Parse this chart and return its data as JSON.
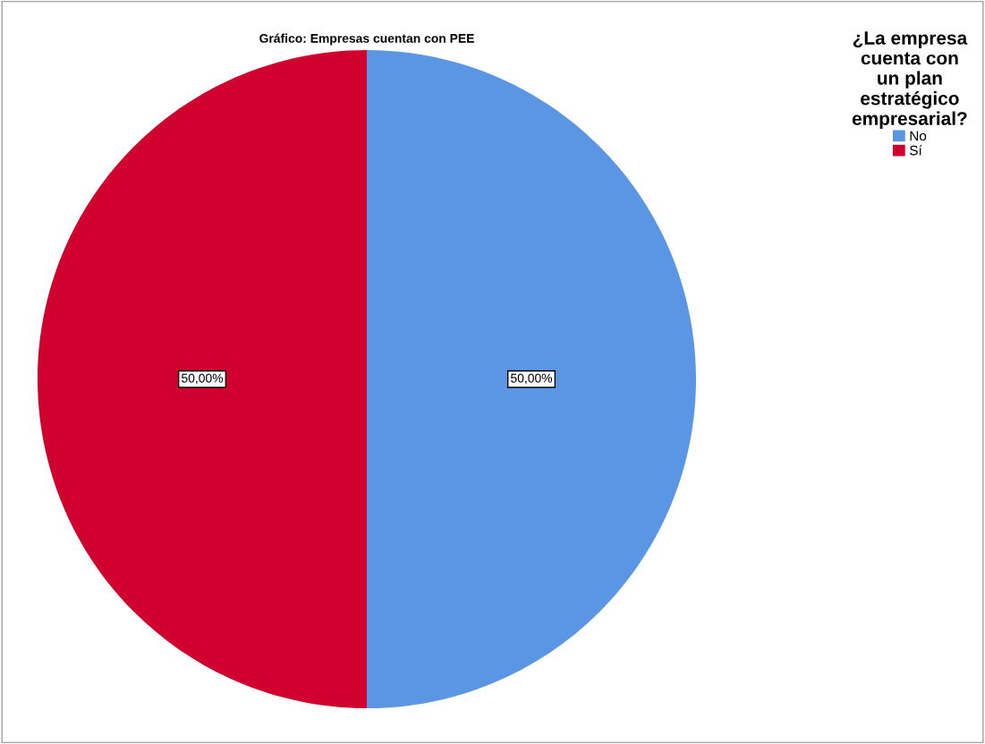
{
  "chart_data": {
    "type": "pie",
    "title": "Gráfico: Empresas cuentan con PEE",
    "legend_title": "¿La empresa\ncuenta con\nun plan\nestratégico\nempresarial?",
    "legend": "top right",
    "categories": [
      "No",
      "Sí"
    ],
    "values": [
      50,
      50
    ],
    "colors": [
      "#5a96e3",
      "#d0002f"
    ],
    "value_labels": [
      "50,00%",
      "50,00%"
    ]
  }
}
